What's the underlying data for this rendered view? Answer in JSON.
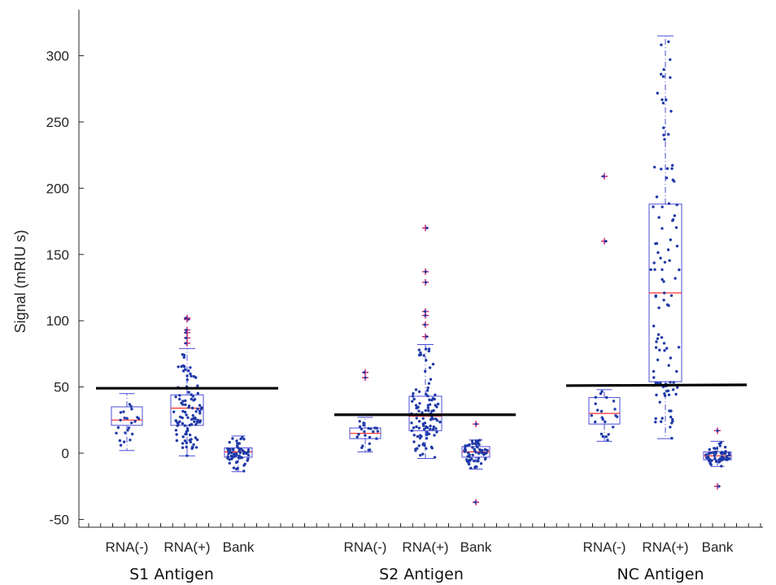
{
  "chart_data": {
    "type": "box",
    "ylabel": "Signal (mRIU s)",
    "ylim": [
      -55,
      330
    ],
    "yticks": [
      -50,
      0,
      50,
      100,
      150,
      200,
      250,
      300
    ],
    "categories": [
      "RNA(-)",
      "RNA(+)",
      "Bank",
      "RNA(-)",
      "RNA(+)",
      "Bank",
      "RNA(-)",
      "RNA(+)",
      "Bank"
    ],
    "groups": [
      {
        "name": "S1 Antigen",
        "threshold": 49,
        "boxes": [
          {
            "label": "RNA(-)",
            "q1": 21,
            "median": 25,
            "q3": 35,
            "whisker_low": 2,
            "whisker_high": 45,
            "outliers": [],
            "n_points": 22
          },
          {
            "label": "RNA(+)",
            "q1": 21,
            "median": 34,
            "q3": 44,
            "whisker_low": -2,
            "whisker_high": 79,
            "outliers": [
              83,
              87,
              91,
              93,
              101,
              102
            ],
            "n_points": 100
          },
          {
            "label": "Bank",
            "q1": -3,
            "median": 1,
            "q3": 4,
            "whisker_low": -14,
            "whisker_high": 13,
            "outliers": [],
            "n_points": 60
          }
        ]
      },
      {
        "name": "S2 Antigen",
        "threshold": 29,
        "boxes": [
          {
            "label": "RNA(-)",
            "q1": 11,
            "median": 15,
            "q3": 19,
            "whisker_low": 1,
            "whisker_high": 27,
            "outliers": [
              57,
              61
            ],
            "n_points": 22
          },
          {
            "label": "RNA(+)",
            "q1": 17,
            "median": 28,
            "q3": 43,
            "whisker_low": -4,
            "whisker_high": 82,
            "outliers": [
              88,
              97,
              104,
              107,
              129,
              137,
              170
            ],
            "n_points": 100
          },
          {
            "label": "Bank",
            "q1": -3,
            "median": 1,
            "q3": 5,
            "whisker_low": -12,
            "whisker_high": 10,
            "outliers": [
              22,
              -37
            ],
            "n_points": 60
          }
        ]
      },
      {
        "name": "NC Antigen",
        "threshold": 51,
        "boxes": [
          {
            "label": "RNA(-)",
            "q1": 22,
            "median": 30,
            "q3": 42,
            "whisker_low": 9,
            "whisker_high": 48,
            "outliers": [
              160,
              209
            ],
            "n_points": 22
          },
          {
            "label": "RNA(+)",
            "q1": 54,
            "median": 121,
            "q3": 188,
            "whisker_low": 11,
            "whisker_high": 315,
            "outliers": [],
            "n_points": 110
          },
          {
            "label": "Bank",
            "q1": -5,
            "median": -2,
            "q3": 1,
            "whisker_low": -10,
            "whisker_high": 9,
            "outliers": [
              17,
              -25
            ],
            "n_points": 60
          }
        ]
      }
    ],
    "colors": {
      "box": "#4b4bd8",
      "median": "#ff2d2d",
      "points": "#1f3aa8",
      "outlier": "#c0206a",
      "threshold": "#000000",
      "axis": "#262626"
    }
  }
}
